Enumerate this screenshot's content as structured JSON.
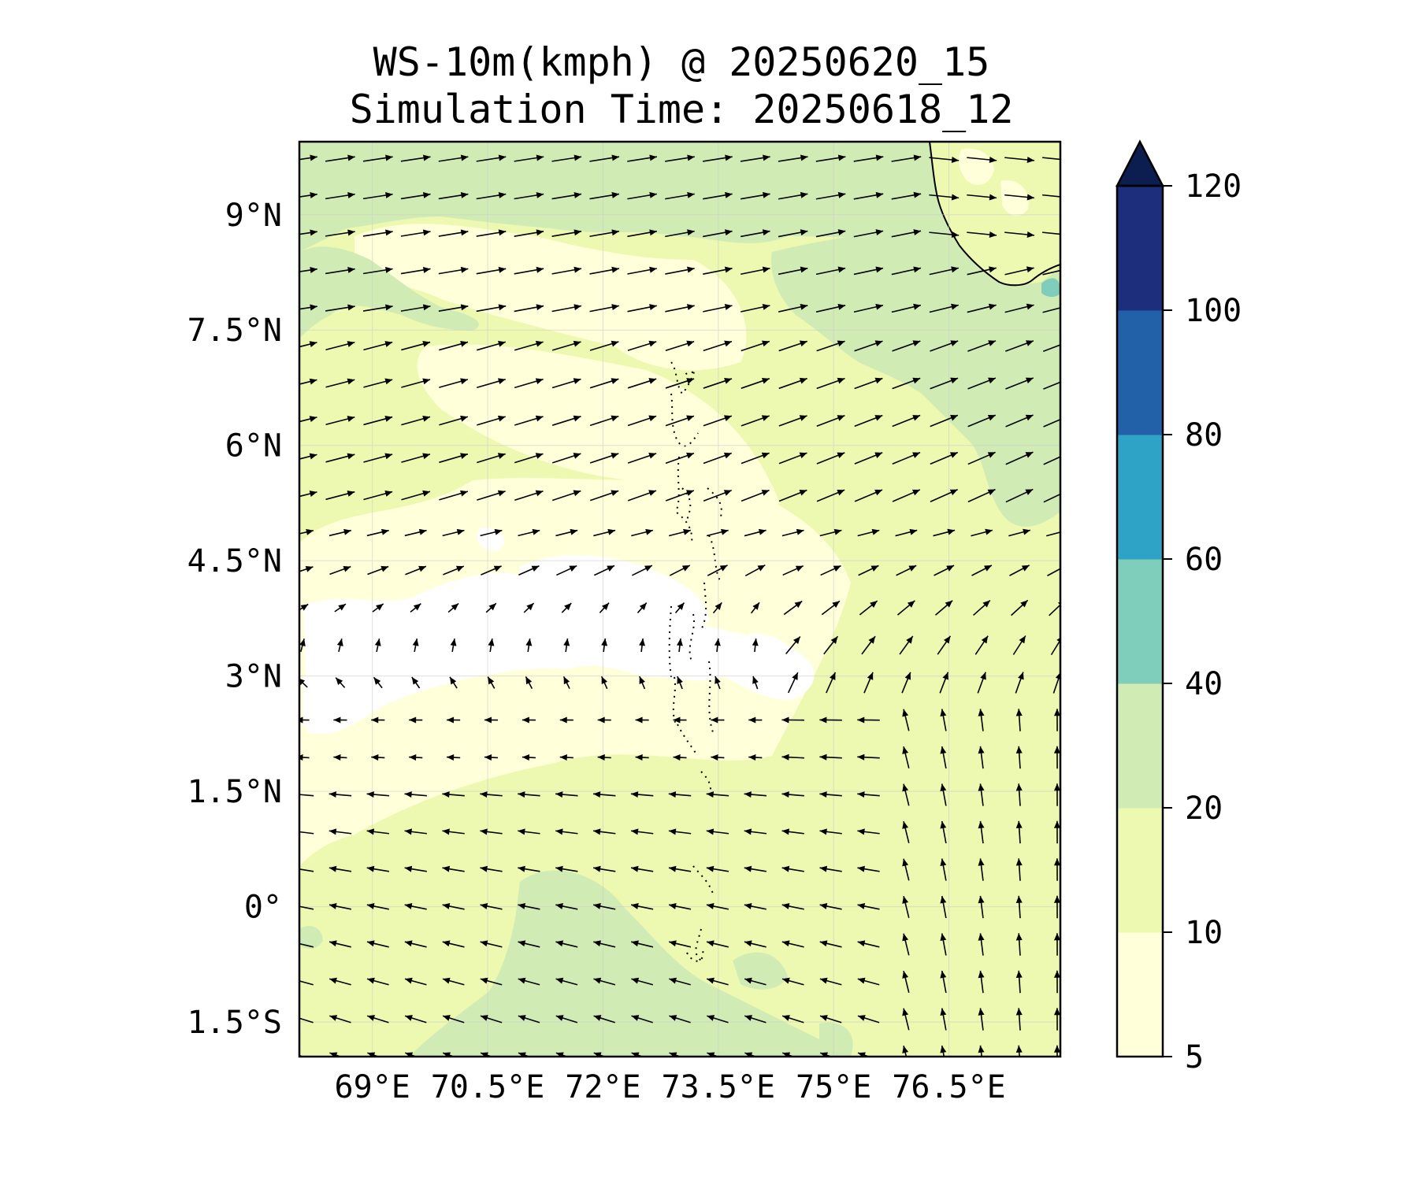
{
  "title": {
    "line1": "WS-10m(kmph) @ 20250620_15",
    "line2": "Simulation Time: 20250618_12"
  },
  "map": {
    "lat_labels": [
      "9°N",
      "7.5°N",
      "6°N",
      "4.5°N",
      "3°N",
      "1.5°N",
      "0°",
      "1.5°S"
    ],
    "lon_labels": [
      "69°E",
      "70.5°E",
      "72°E",
      "73.5°E",
      "75°E",
      "76.5°E"
    ],
    "lat_values": [
      9,
      7.5,
      6,
      4.5,
      3,
      1.5,
      0,
      -1.5
    ],
    "lon_values": [
      69,
      70.5,
      72,
      73.5,
      75,
      76.5
    ],
    "extent": {
      "lon_min": 68.05,
      "lon_max": 77.95,
      "lat_min": -1.95,
      "lat_max": 9.95
    },
    "field_colors": {
      "speed_5_10": "#ffffd9",
      "speed_10_20": "#edf8b1",
      "speed_20_40": "#d0ecb4",
      "speed_40_60": "#7fcdbb",
      "calm": "#ffffff"
    },
    "coastline": "south-west India (Kerala) in upper-right corner",
    "islands": "Maldives atolls (dotted outline) near 73.5°E"
  },
  "colorbar": {
    "levels": [
      "5",
      "10",
      "20",
      "40",
      "60",
      "80",
      "100",
      "120"
    ],
    "colors": [
      "#ffffd9",
      "#edf8b1",
      "#d0ecb4",
      "#7fcdbb",
      "#2fa3c6",
      "#2260a8",
      "#1d2e7d"
    ],
    "extend_color": "#0c1e4f"
  }
}
